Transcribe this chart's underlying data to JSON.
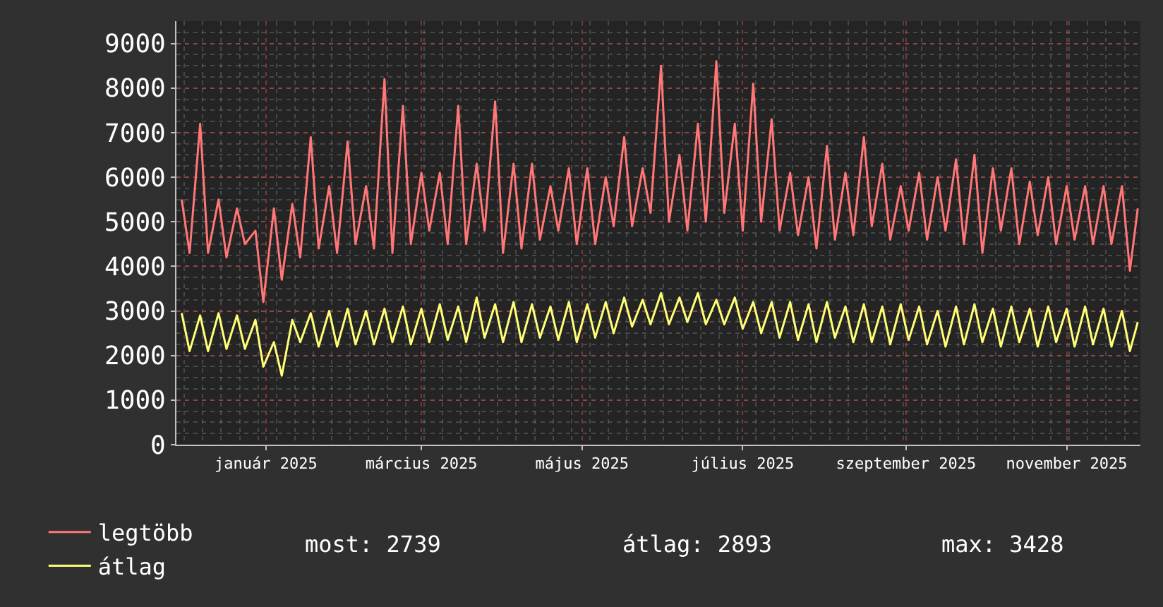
{
  "chart_data": {
    "type": "line",
    "x": [
      "2024-11-30",
      "2024-12-03",
      "2024-12-07",
      "2024-12-10",
      "2024-12-14",
      "2024-12-17",
      "2024-12-21",
      "2024-12-24",
      "2024-12-28",
      "2024-12-31",
      "2025-01-04",
      "2025-01-07",
      "2025-01-11",
      "2025-01-14",
      "2025-01-18",
      "2025-01-21",
      "2025-01-25",
      "2025-01-28",
      "2025-02-01",
      "2025-02-04",
      "2025-02-08",
      "2025-02-11",
      "2025-02-15",
      "2025-02-18",
      "2025-02-22",
      "2025-02-25",
      "2025-03-01",
      "2025-03-04",
      "2025-03-08",
      "2025-03-11",
      "2025-03-15",
      "2025-03-18",
      "2025-03-22",
      "2025-03-25",
      "2025-03-29",
      "2025-04-01",
      "2025-04-05",
      "2025-04-08",
      "2025-04-12",
      "2025-04-15",
      "2025-04-19",
      "2025-04-22",
      "2025-04-26",
      "2025-04-29",
      "2025-05-03",
      "2025-05-06",
      "2025-05-10",
      "2025-05-13",
      "2025-05-17",
      "2025-05-20",
      "2025-05-24",
      "2025-05-27",
      "2025-05-31",
      "2025-06-03",
      "2025-06-07",
      "2025-06-10",
      "2025-06-14",
      "2025-06-17",
      "2025-06-21",
      "2025-06-24",
      "2025-06-28",
      "2025-07-01",
      "2025-07-05",
      "2025-07-08",
      "2025-07-12",
      "2025-07-15",
      "2025-07-19",
      "2025-07-22",
      "2025-07-26",
      "2025-07-29",
      "2025-08-02",
      "2025-08-05",
      "2025-08-09",
      "2025-08-12",
      "2025-08-16",
      "2025-08-19",
      "2025-08-23",
      "2025-08-26",
      "2025-08-30",
      "2025-09-02",
      "2025-09-06",
      "2025-09-09",
      "2025-09-13",
      "2025-09-16",
      "2025-09-20",
      "2025-09-23",
      "2025-09-27",
      "2025-09-30",
      "2025-10-04",
      "2025-10-07",
      "2025-10-11",
      "2025-10-14",
      "2025-10-18",
      "2025-10-21",
      "2025-10-25",
      "2025-10-28",
      "2025-11-01",
      "2025-11-04",
      "2025-11-08",
      "2025-11-11",
      "2025-11-15",
      "2025-11-18",
      "2025-11-22",
      "2025-11-25",
      "2025-11-28"
    ],
    "series": [
      {
        "name": "legtöbb",
        "color": "#ff7777",
        "values": [
          5500,
          4300,
          7200,
          4300,
          5500,
          4200,
          5300,
          4500,
          4800,
          3200,
          5300,
          3700,
          5400,
          4200,
          6900,
          4400,
          5800,
          4300,
          6800,
          4500,
          5800,
          4400,
          8200,
          4300,
          7600,
          4500,
          6100,
          4800,
          6100,
          4500,
          7600,
          4500,
          6300,
          4800,
          7700,
          4300,
          6300,
          4400,
          6300,
          4600,
          5800,
          4800,
          6200,
          4500,
          6200,
          4500,
          6000,
          4900,
          6900,
          4900,
          6200,
          5200,
          8500,
          5000,
          6500,
          4800,
          7200,
          5000,
          8600,
          5200,
          7200,
          4800,
          8100,
          5000,
          7300,
          4800,
          6100,
          4700,
          6000,
          4400,
          6700,
          4600,
          6100,
          4700,
          6900,
          4900,
          6300,
          4600,
          5800,
          4800,
          6100,
          4600,
          6000,
          4800,
          6400,
          4500,
          6500,
          4300,
          6200,
          4800,
          6200,
          4500,
          5900,
          4700,
          6000,
          4500,
          5800,
          4600,
          5800,
          4500,
          5800,
          4500,
          5800,
          3900,
          5300
        ]
      },
      {
        "name": "átlag",
        "color": "#ffff77",
        "values": [
          2950,
          2100,
          2900,
          2100,
          2950,
          2150,
          2900,
          2150,
          2800,
          1750,
          2300,
          1550,
          2800,
          2300,
          2950,
          2200,
          3000,
          2200,
          3050,
          2250,
          3000,
          2250,
          3050,
          2300,
          3100,
          2250,
          3050,
          2300,
          3150,
          2350,
          3100,
          2300,
          3300,
          2400,
          3150,
          2300,
          3200,
          2300,
          3150,
          2400,
          3100,
          2350,
          3200,
          2300,
          3150,
          2400,
          3200,
          2500,
          3300,
          2650,
          3250,
          2700,
          3400,
          2700,
          3300,
          2750,
          3400,
          2700,
          3250,
          2700,
          3300,
          2600,
          3200,
          2500,
          3200,
          2400,
          3200,
          2350,
          3150,
          2300,
          3200,
          2400,
          3100,
          2300,
          3150,
          2300,
          3100,
          2250,
          3150,
          2350,
          3100,
          2250,
          3000,
          2200,
          3100,
          2250,
          3150,
          2300,
          3050,
          2200,
          3100,
          2300,
          3050,
          2200,
          3100,
          2300,
          3050,
          2200,
          3100,
          2250,
          3050,
          2200,
          3000,
          2100,
          2750
        ]
      }
    ],
    "xlim": [
      "2024-11-28",
      "2025-11-29"
    ],
    "xticks": [
      {
        "value": "2025-01-01",
        "label": "január 2025"
      },
      {
        "value": "2025-03-01",
        "label": "március 2025"
      },
      {
        "value": "2025-05-01",
        "label": "május 2025"
      },
      {
        "value": "2025-07-01",
        "label": "július 2025"
      },
      {
        "value": "2025-09-01",
        "label": "szeptember 2025"
      },
      {
        "value": "2025-11-01",
        "label": "november 2025"
      }
    ],
    "ylim": [
      0,
      9500
    ],
    "yticks": [
      0,
      1000,
      2000,
      3000,
      4000,
      5000,
      6000,
      7000,
      8000,
      9000
    ],
    "grid": true,
    "legend": "bottom left",
    "line_style": "solid",
    "annotations": [
      "most: 2739",
      "átlag: 2893",
      "max: 3428"
    ]
  }
}
